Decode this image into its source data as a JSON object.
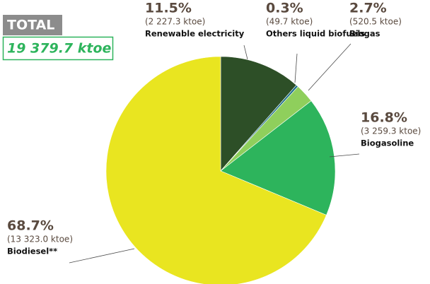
{
  "chart_data": {
    "type": "pie",
    "total_label": "TOTAL",
    "total_value": "19 379.7 ktoe",
    "categories": [
      "Renewable electricity",
      "Others liquid biofuels",
      "Biogas",
      "Biogasoline",
      "Biodiesel**"
    ],
    "values": [
      11.5,
      0.3,
      2.7,
      16.8,
      68.7
    ],
    "value_labels": [
      "11.5%",
      "0.3%",
      "2.7%",
      "16.8%",
      "68.7%"
    ],
    "amount_labels": [
      "(2 227.3 ktoe)",
      "(49.7 ktoe)",
      "(520.5 ktoe)",
      "(3 259.3 ktoe)",
      "(13 323.0 ktoe)"
    ],
    "colors": [
      "#2d4f27",
      "#1d6f8a",
      "#8fcf5c",
      "#2db45c",
      "#e9e520"
    ]
  }
}
